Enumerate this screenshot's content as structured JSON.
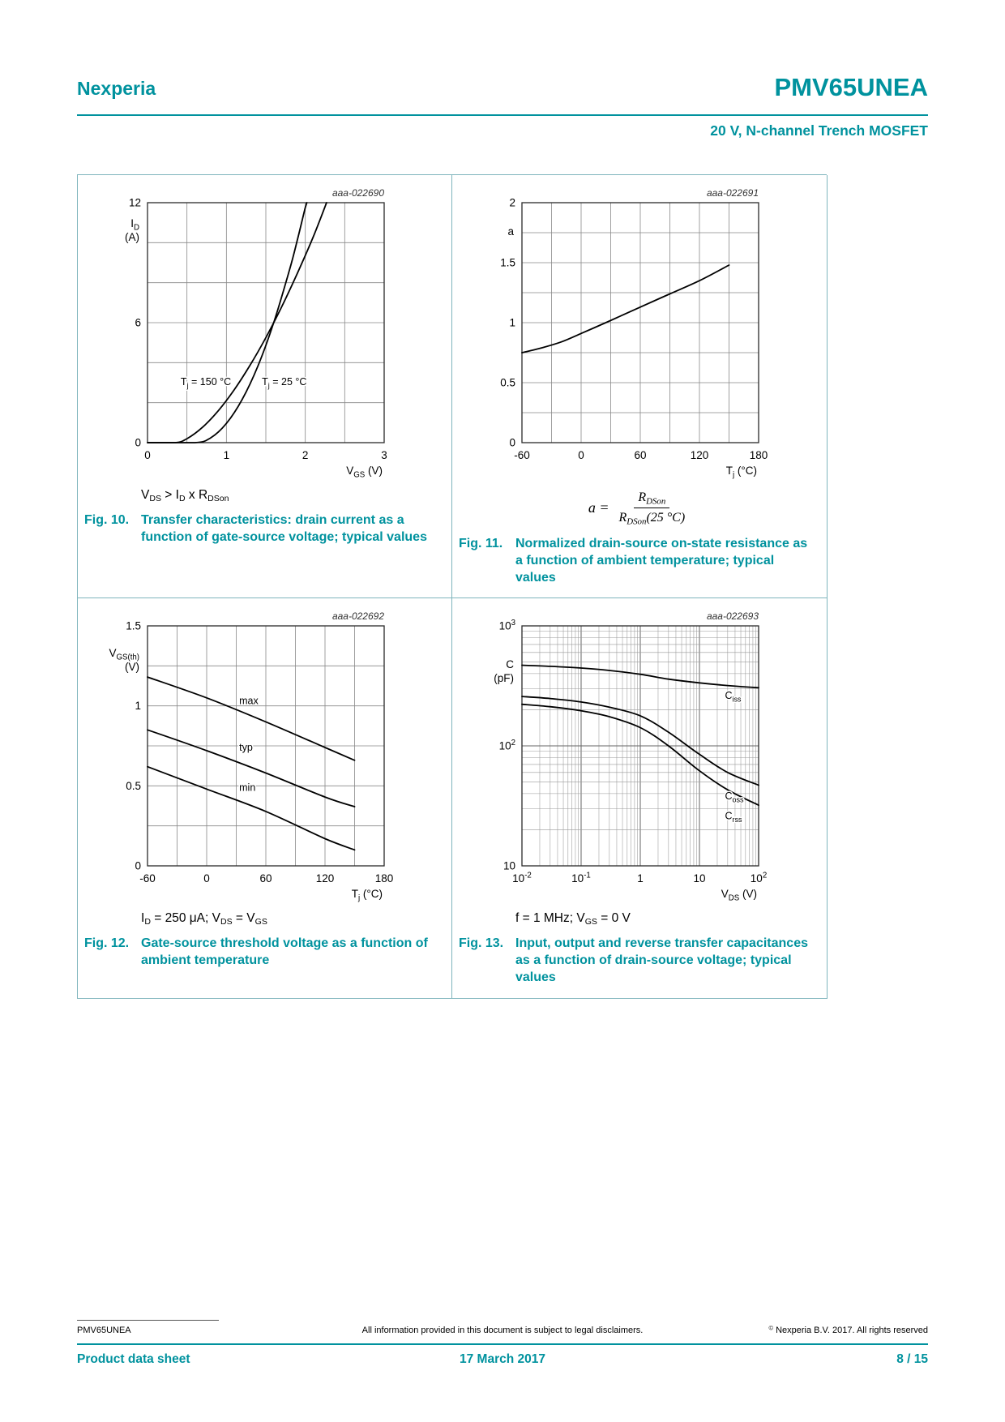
{
  "meta": {
    "accent_color": "#00929e",
    "table_border_color": "#7fb5bd",
    "grid_color": "#888888",
    "curve_color": "#000000"
  },
  "header": {
    "brand": "Nexperia",
    "part": "PMV65UNEA",
    "subtitle": "20 V, N-channel Trench MOSFET"
  },
  "figures": [
    {
      "no": "Fig. 10.",
      "caption": "Transfer characteristics: drain current as a function of gate-source voltage; typical values",
      "condition": "V_{DS} > I_{D} x R_{DSon}"
    },
    {
      "no": "Fig. 11.",
      "caption": "Normalized drain-source on-state resistance as a function of ambient temperature; typical values",
      "formula": {
        "lhs": "a =",
        "num": "R_{DSon}",
        "den": "R_{DSon}(25 °C)"
      }
    },
    {
      "no": "Fig. 12.",
      "caption": "Gate-source threshold voltage as a function of ambient temperature",
      "condition": "I_{D} = 250 μA; V_{DS} = V_{GS}"
    },
    {
      "no": "Fig. 13.",
      "caption": "Input, output and reverse transfer capacitances as a function of drain-source voltage; typical values",
      "condition": "f = 1 MHz; V_{GS} = 0 V"
    }
  ],
  "chart_data": [
    {
      "name": "fig10-transfer-characteristics",
      "type": "line",
      "watermark": "aaa-022690",
      "x": {
        "scale": "linear",
        "min": 0,
        "max": 3,
        "grid_step": 0.5,
        "label": "V_{GS} (V)",
        "ticks": [
          {
            "v": 0,
            "t": "0"
          },
          {
            "v": 1,
            "t": "1"
          },
          {
            "v": 2,
            "t": "2"
          },
          {
            "v": 3,
            "t": "3"
          }
        ]
      },
      "y": {
        "scale": "linear",
        "min": 0,
        "max": 12,
        "grid_step": 2,
        "label_dy": 30,
        "label_lines": [
          "I_{D}",
          "(A)"
        ],
        "ticks": [
          {
            "v": 0,
            "t": "0"
          },
          {
            "v": 6,
            "t": "6"
          },
          {
            "v": 12,
            "t": "12"
          }
        ]
      },
      "series": [
        {
          "name": "Tj = 150 C",
          "points": [
            [
              0,
              0
            ],
            [
              0.35,
              0
            ],
            [
              0.5,
              0.2
            ],
            [
              0.7,
              0.78
            ],
            [
              0.9,
              1.61
            ],
            [
              1.1,
              2.65
            ],
            [
              1.3,
              3.87
            ],
            [
              1.5,
              5.25
            ],
            [
              1.7,
              6.79
            ],
            [
              1.9,
              8.47
            ],
            [
              2.1,
              10.28
            ],
            [
              2.27,
              12
            ]
          ]
        },
        {
          "name": "Tj = 25 C",
          "points": [
            [
              0,
              0
            ],
            [
              0.6,
              0
            ],
            [
              0.8,
              0.24
            ],
            [
              1.0,
              0.96
            ],
            [
              1.2,
              2.16
            ],
            [
              1.4,
              3.84
            ],
            [
              1.6,
              6.0
            ],
            [
              1.8,
              8.64
            ],
            [
              1.9,
              10.14
            ],
            [
              2.0,
              11.76
            ],
            [
              2.02,
              12
            ]
          ]
        }
      ],
      "annotations": [
        {
          "text": "T_{j} = 150 °C",
          "x": 1.06,
          "y": 3.05,
          "anchor": "end"
        },
        {
          "text": "T_{j} = 25 °C",
          "x": 1.45,
          "y": 3.05,
          "anchor": "start"
        }
      ]
    },
    {
      "name": "fig11-normalized-rdson",
      "type": "line",
      "watermark": "aaa-022691",
      "x": {
        "scale": "linear",
        "min": -60,
        "max": 180,
        "grid_step": 30,
        "label": "T_{j} (°C)",
        "ticks": [
          {
            "v": -60,
            "t": "-60"
          },
          {
            "v": 0,
            "t": "0"
          },
          {
            "v": 60,
            "t": "60"
          },
          {
            "v": 120,
            "t": "120"
          },
          {
            "v": 180,
            "t": "180"
          }
        ]
      },
      "y": {
        "scale": "linear",
        "min": 0,
        "max": 2,
        "grid_step": 0.25,
        "label_dy": 40,
        "label_lines": [
          "a"
        ],
        "ticks": [
          {
            "v": 0,
            "t": "0"
          },
          {
            "v": 0.5,
            "t": "0.5"
          },
          {
            "v": 1,
            "t": "1"
          },
          {
            "v": 1.5,
            "t": "1.5"
          },
          {
            "v": 2,
            "t": "2"
          }
        ]
      },
      "series": [
        {
          "name": "a",
          "points": [
            [
              -60,
              0.75
            ],
            [
              -40,
              0.79
            ],
            [
              -20,
              0.84
            ],
            [
              0,
              0.91
            ],
            [
              25,
              1.0
            ],
            [
              60,
              1.13
            ],
            [
              90,
              1.24
            ],
            [
              120,
              1.35
            ],
            [
              150,
              1.48
            ]
          ]
        }
      ],
      "annotations": []
    },
    {
      "name": "fig12-gate-source-threshold",
      "type": "line",
      "watermark": "aaa-022692",
      "x": {
        "scale": "linear",
        "min": -60,
        "max": 180,
        "grid_step": 30,
        "label": "T_{j} (°C)",
        "ticks": [
          {
            "v": -60,
            "t": "-60"
          },
          {
            "v": 0,
            "t": "0"
          },
          {
            "v": 60,
            "t": "60"
          },
          {
            "v": 120,
            "t": "120"
          },
          {
            "v": 180,
            "t": "180"
          }
        ]
      },
      "y": {
        "scale": "linear",
        "min": 0,
        "max": 1.5,
        "grid_step": 0.25,
        "label_dy": 38,
        "label_lines": [
          "V_{GS(th)}",
          "(V)"
        ],
        "ticks": [
          {
            "v": 0,
            "t": "0"
          },
          {
            "v": 0.5,
            "t": "0.5"
          },
          {
            "v": 1,
            "t": "1"
          },
          {
            "v": 1.5,
            "t": "1.5"
          }
        ]
      },
      "series": [
        {
          "name": "max",
          "points": [
            [
              -60,
              1.18
            ],
            [
              0,
              1.05
            ],
            [
              60,
              0.9
            ],
            [
              120,
              0.74
            ],
            [
              150,
              0.66
            ]
          ]
        },
        {
          "name": "typ",
          "points": [
            [
              -60,
              0.85
            ],
            [
              0,
              0.72
            ],
            [
              60,
              0.58
            ],
            [
              120,
              0.43
            ],
            [
              150,
              0.37
            ]
          ]
        },
        {
          "name": "min",
          "points": [
            [
              -60,
              0.62
            ],
            [
              0,
              0.48
            ],
            [
              60,
              0.34
            ],
            [
              120,
              0.17
            ],
            [
              150,
              0.1
            ]
          ]
        }
      ],
      "annotations": [
        {
          "text": "max",
          "x": 33,
          "y": 1.03,
          "anchor": "start"
        },
        {
          "text": "typ",
          "x": 33,
          "y": 0.74,
          "anchor": "start"
        },
        {
          "text": "min",
          "x": 33,
          "y": 0.49,
          "anchor": "start"
        }
      ]
    },
    {
      "name": "fig13-capacitances",
      "type": "line",
      "watermark": "aaa-022693",
      "x": {
        "scale": "log",
        "min": 0.01,
        "max": 100,
        "label": "V_{DS} (V)",
        "ticks": [
          {
            "v": 0.01,
            "t": "10^{-2}"
          },
          {
            "v": 0.1,
            "t": "10^{-1}"
          },
          {
            "v": 1,
            "t": "1"
          },
          {
            "v": 10,
            "t": "10"
          },
          {
            "v": 100,
            "t": "10^{2}"
          }
        ]
      },
      "y": {
        "scale": "log",
        "min": 10,
        "max": 1000,
        "label_dy": 52,
        "label_lines": [
          "C",
          "(pF)"
        ],
        "ticks": [
          {
            "v": 10,
            "t": "10"
          },
          {
            "v": 100,
            "t": "10^{2}"
          },
          {
            "v": 1000,
            "t": "10^{3}"
          }
        ]
      },
      "series": [
        {
          "name": "Ciss",
          "points": [
            [
              0.01,
              470
            ],
            [
              0.03,
              460
            ],
            [
              0.1,
              445
            ],
            [
              0.3,
              425
            ],
            [
              1,
              395
            ],
            [
              3,
              360
            ],
            [
              10,
              335
            ],
            [
              30,
              318
            ],
            [
              100,
              305
            ]
          ]
        },
        {
          "name": "Coss",
          "points": [
            [
              0.01,
              258
            ],
            [
              0.03,
              248
            ],
            [
              0.1,
              232
            ],
            [
              0.3,
              210
            ],
            [
              1,
              178
            ],
            [
              3,
              130
            ],
            [
              10,
              85
            ],
            [
              30,
              60
            ],
            [
              100,
              47
            ]
          ]
        },
        {
          "name": "Crss",
          "points": [
            [
              0.01,
              222
            ],
            [
              0.03,
              212
            ],
            [
              0.1,
              196
            ],
            [
              0.3,
              175
            ],
            [
              1,
              142
            ],
            [
              3,
              100
            ],
            [
              10,
              62
            ],
            [
              30,
              43
            ],
            [
              100,
              32
            ]
          ]
        }
      ],
      "annotations": [
        {
          "text": "C_{iss}",
          "x": 27,
          "y": 262,
          "anchor": "start"
        },
        {
          "text": "C_{oss}",
          "x": 27,
          "y": 38,
          "anchor": "start"
        },
        {
          "text": "C_{rss}",
          "x": 27,
          "y": 26,
          "anchor": "start"
        }
      ]
    }
  ],
  "footer": {
    "doc_id": "PMV65UNEA",
    "disclaimer": "All information provided in this document is subject to legal disclaimers.",
    "copyright": "^{©} Nexperia B.V. 2017. All rights reserved",
    "doc_type": "Product data sheet",
    "date": "17 March 2017",
    "page": "8 / 15"
  }
}
